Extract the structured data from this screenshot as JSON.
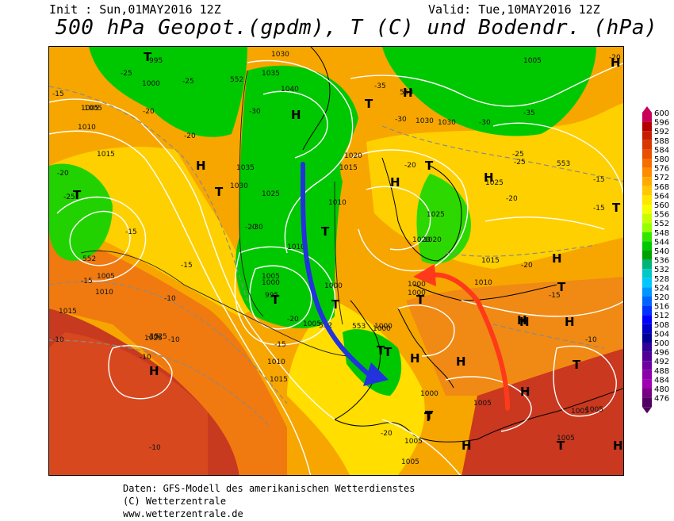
{
  "header": {
    "init": "Init : Sun,01MAY2016 12Z",
    "valid": "Valid: Tue,10MAY2016 12Z",
    "title": "500 hPa Geopot.(gpdm), T (C) und Bodendr. (hPa)"
  },
  "footer": {
    "line1": "Daten: GFS-Modell des amerikanischen Wetterdienstes",
    "line2": "(C) Wetterzentrale",
    "line3": "www.wetterzentrale.de"
  },
  "legend": {
    "levels": [
      "600",
      "596",
      "592",
      "588",
      "584",
      "580",
      "576",
      "572",
      "568",
      "564",
      "560",
      "556",
      "552",
      "548",
      "544",
      "540",
      "536",
      "532",
      "528",
      "524",
      "520",
      "516",
      "512",
      "508",
      "504",
      "500",
      "496",
      "492",
      "488",
      "484",
      "480",
      "476"
    ],
    "colors": [
      "#c8005a",
      "#b40000",
      "#c81e00",
      "#d73700",
      "#e65000",
      "#f56e00",
      "#ff8c00",
      "#ffaa00",
      "#ffc800",
      "#ffe600",
      "#f5ff00",
      "#c8ff00",
      "#96ff00",
      "#32e600",
      "#00c800",
      "#00a000",
      "#00b478",
      "#00c8c8",
      "#00c8ff",
      "#0096ff",
      "#0064ff",
      "#0032ff",
      "#0000ff",
      "#0000c8",
      "#000096",
      "#320096",
      "#500096",
      "#6e00a0",
      "#8c00aa",
      "#a000b4",
      "#780082",
      "#500060"
    ]
  },
  "map": {
    "highs": [
      "H",
      "H",
      "H",
      "H",
      "H",
      "H",
      "H",
      "H",
      "H",
      "H",
      "H",
      "H",
      "H",
      "H",
      "H",
      "H"
    ],
    "lows": [
      "T",
      "T",
      "T",
      "T",
      "T",
      "T",
      "T",
      "T",
      "T",
      "T",
      "T",
      "T",
      "T",
      "T",
      "T",
      "T",
      "T"
    ],
    "pressure_labels": [
      "1030",
      "1035",
      "1040",
      "1035",
      "1030",
      "1025",
      "1020",
      "1015",
      "1010",
      "1005",
      "1000",
      "995",
      "1005",
      "1000",
      "995",
      "1005",
      "1010",
      "1015",
      "1020",
      "1025",
      "1000",
      "1005",
      "1010",
      "1015",
      "1005",
      "1000",
      "1005",
      "1010",
      "1015",
      "1010",
      "1005",
      "1000",
      "1025",
      "1030",
      "1025",
      "1020",
      "1015",
      "1010",
      "1005",
      "1000",
      "1005",
      "1005",
      "1000",
      "1005",
      "1000",
      "1005",
      "1025",
      "1030"
    ],
    "temp_labels": [
      "-25",
      "-25",
      "-20",
      "-15",
      "-20",
      "-25",
      "-15",
      "-20",
      "-15",
      "-10",
      "-10",
      "-15",
      "-20",
      "-30",
      "-35",
      "-30",
      "-35",
      "-30",
      "-25",
      "-20",
      "-20",
      "-25",
      "-30",
      "-15",
      "-20",
      "-15",
      "-15",
      "-10",
      "-20",
      "-15",
      "-10",
      "-20",
      "-15",
      "-10",
      "-20",
      "-10"
    ],
    "geo_labels": [
      "552",
      "553",
      "552",
      "553",
      "552",
      "553"
    ],
    "arrows": {
      "cold": "#2233dd",
      "warm": "#ff3a1a"
    }
  }
}
